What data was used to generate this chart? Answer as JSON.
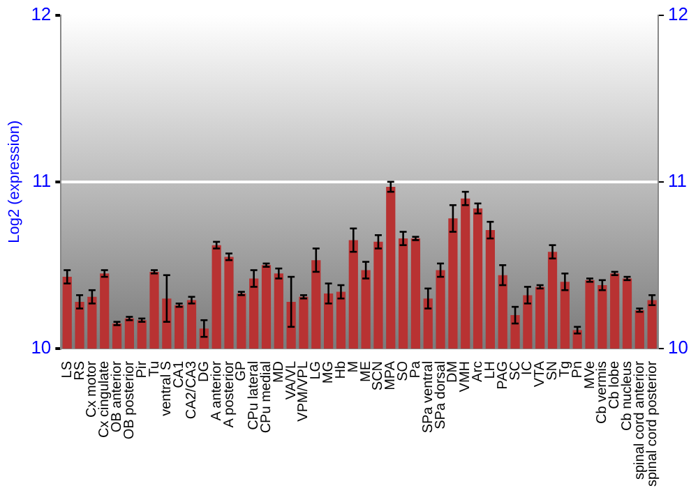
{
  "chart_data": {
    "type": "bar",
    "ylabel": "Log2 (expression)",
    "categories": [
      "LS",
      "RS",
      "Cx motor",
      "Cx cingulate",
      "OB anterior",
      "OB posterior",
      "Pir",
      "Tu",
      "ventral S",
      "CA1",
      "CA2/CA3",
      "DG",
      "A anterior",
      "A posterior",
      "GP",
      "CPu lateral",
      "CPu medial",
      "MD",
      "VA/VL",
      "VPM/VPL",
      "LG",
      "MG",
      "Hb",
      "M",
      "ME",
      "SCN",
      "MPA",
      "SO",
      "Pa",
      "SPa ventral",
      "SPa dorsal",
      "DM",
      "VMH",
      "Arc",
      "LH",
      "PAG",
      "SC",
      "IC",
      "VTA",
      "SN",
      "Tg",
      "Pn",
      "MVe",
      "Cb vermis",
      "Cb lobe",
      "Cb nucleus",
      "spinal cord anterior",
      "spinal cord posterior"
    ],
    "values": [
      10.43,
      10.28,
      10.31,
      10.45,
      10.15,
      10.18,
      10.17,
      10.46,
      10.3,
      10.26,
      10.29,
      10.12,
      10.62,
      10.55,
      10.33,
      10.42,
      10.5,
      10.45,
      10.28,
      10.31,
      10.53,
      10.33,
      10.34,
      10.65,
      10.47,
      10.64,
      10.97,
      10.66,
      10.66,
      10.3,
      10.47,
      10.78,
      10.9,
      10.84,
      10.71,
      10.44,
      10.2,
      10.32,
      10.37,
      10.58,
      10.4,
      10.11,
      10.41,
      10.38,
      10.45,
      10.42,
      10.23,
      10.29
    ],
    "errors": [
      0.04,
      0.04,
      0.04,
      0.02,
      0.01,
      0.01,
      0.01,
      0.01,
      0.14,
      0.01,
      0.02,
      0.05,
      0.02,
      0.02,
      0.01,
      0.05,
      0.01,
      0.03,
      0.15,
      0.01,
      0.07,
      0.06,
      0.04,
      0.07,
      0.05,
      0.04,
      0.03,
      0.04,
      0.01,
      0.06,
      0.04,
      0.08,
      0.04,
      0.03,
      0.05,
      0.06,
      0.05,
      0.05,
      0.01,
      0.04,
      0.05,
      0.02,
      0.01,
      0.03,
      0.01,
      0.01,
      0.01,
      0.03
    ],
    "color": "#b83232",
    "ylim": [
      10,
      12
    ],
    "yticks": [
      10,
      11,
      12
    ],
    "y2lim": [
      10,
      12
    ],
    "y2ticks": [
      10,
      11,
      12
    ],
    "grid": "y",
    "legend": false
  }
}
